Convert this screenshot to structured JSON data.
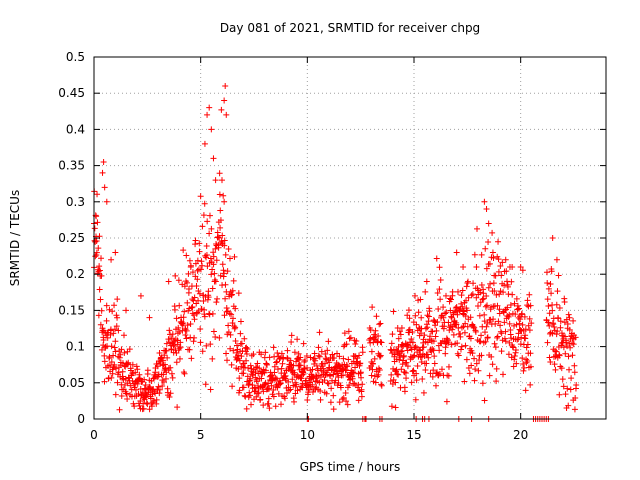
{
  "chart_data": {
    "type": "scatter",
    "title": "Day 081 of 2021, SRMTID for receiver chpg",
    "xlabel": "GPS time / hours",
    "ylabel": "SRMTID / TECUs",
    "xlim": [
      0,
      24
    ],
    "ylim": [
      0,
      0.5
    ],
    "grid": true,
    "marker": "plus",
    "color": "#ff0000",
    "x_ticks": [
      0,
      5,
      10,
      15,
      20
    ],
    "x_tick_labels": [
      "0",
      "5",
      "10",
      "15",
      "20"
    ],
    "y_ticks": [
      0,
      0.05,
      0.1,
      0.15,
      0.2,
      0.25,
      0.3,
      0.35,
      0.4,
      0.45,
      0.5
    ],
    "y_tick_labels": [
      "0",
      "0.05",
      "0.1",
      "0.15",
      "0.2",
      "0.25",
      "0.3",
      "0.35",
      "0.4",
      "0.45",
      "0.5"
    ],
    "series": [
      {
        "name": "SRMTID",
        "trend": [
          [
            0.0,
            0.24
          ],
          [
            0.1,
            0.26
          ],
          [
            0.3,
            0.17
          ],
          [
            0.5,
            0.1
          ],
          [
            0.8,
            0.09
          ],
          [
            1.0,
            0.1
          ],
          [
            1.3,
            0.06
          ],
          [
            1.7,
            0.06
          ],
          [
            2.0,
            0.05
          ],
          [
            2.3,
            0.035
          ],
          [
            2.7,
            0.04
          ],
          [
            3.0,
            0.06
          ],
          [
            3.5,
            0.08
          ],
          [
            4.0,
            0.12
          ],
          [
            4.5,
            0.15
          ],
          [
            5.0,
            0.17
          ],
          [
            5.5,
            0.19
          ],
          [
            5.8,
            0.22
          ],
          [
            6.0,
            0.25
          ],
          [
            6.3,
            0.15
          ],
          [
            6.6,
            0.1
          ],
          [
            7.0,
            0.06
          ],
          [
            7.5,
            0.045
          ],
          [
            8.0,
            0.05
          ],
          [
            9.0,
            0.065
          ],
          [
            10.0,
            0.06
          ],
          [
            11.0,
            0.065
          ],
          [
            12.0,
            0.07
          ],
          [
            12.6,
            0.065
          ],
          [
            13.0,
            0.09
          ],
          [
            14.0,
            0.085
          ],
          [
            15.0,
            0.1
          ],
          [
            16.0,
            0.11
          ],
          [
            17.0,
            0.13
          ],
          [
            18.0,
            0.14
          ],
          [
            19.0,
            0.16
          ],
          [
            20.0,
            0.13
          ],
          [
            20.5,
            0.12
          ],
          [
            21.5,
            0.13
          ],
          [
            22.0,
            0.1
          ],
          [
            22.6,
            0.08
          ]
        ],
        "spread": [
          [
            0.0,
            0.03
          ],
          [
            1.0,
            0.03
          ],
          [
            2.0,
            0.015
          ],
          [
            3.0,
            0.02
          ],
          [
            4.0,
            0.04
          ],
          [
            5.0,
            0.05
          ],
          [
            6.0,
            0.06
          ],
          [
            7.0,
            0.025
          ],
          [
            8.0,
            0.02
          ],
          [
            12.0,
            0.02
          ],
          [
            13.0,
            0.025
          ],
          [
            15.0,
            0.03
          ],
          [
            17.0,
            0.035
          ],
          [
            18.0,
            0.05
          ],
          [
            20.0,
            0.04
          ],
          [
            22.0,
            0.04
          ]
        ],
        "gaps": [
          [
            12.6,
            12.9
          ],
          [
            13.5,
            13.9
          ],
          [
            20.5,
            21.2
          ]
        ],
        "outliers": [
          [
            0.0,
            0.27
          ],
          [
            0.1,
            0.28
          ],
          [
            0.4,
            0.34
          ],
          [
            0.45,
            0.355
          ],
          [
            0.5,
            0.32
          ],
          [
            0.6,
            0.3
          ],
          [
            0.8,
            0.22
          ],
          [
            1.0,
            0.23
          ],
          [
            1.5,
            0.15
          ],
          [
            2.2,
            0.17
          ],
          [
            2.6,
            0.14
          ],
          [
            3.5,
            0.19
          ],
          [
            5.2,
            0.38
          ],
          [
            5.3,
            0.42
          ],
          [
            5.4,
            0.43
          ],
          [
            5.5,
            0.4
          ],
          [
            5.6,
            0.36
          ],
          [
            5.7,
            0.33
          ],
          [
            5.9,
            0.31
          ],
          [
            6.0,
            0.33
          ],
          [
            6.1,
            0.3
          ],
          [
            6.1,
            0.44
          ],
          [
            6.15,
            0.46
          ],
          [
            6.2,
            0.42
          ],
          [
            15.3,
            0.165
          ],
          [
            15.6,
            0.19
          ],
          [
            16.5,
            0.17
          ],
          [
            17.0,
            0.23
          ],
          [
            17.3,
            0.21
          ],
          [
            18.3,
            0.3
          ],
          [
            18.4,
            0.29
          ],
          [
            18.5,
            0.27
          ],
          [
            18.7,
            0.23
          ],
          [
            19.3,
            0.22
          ],
          [
            19.6,
            0.21
          ],
          [
            20.0,
            0.21
          ],
          [
            21.5,
            0.25
          ],
          [
            21.7,
            0.22
          ]
        ],
        "zero_points": [
          10.0,
          10.05,
          12.6,
          12.7,
          12.75,
          13.4,
          13.5,
          15.1,
          15.4,
          15.5,
          15.7,
          17.1,
          17.7,
          18.5,
          20.6,
          20.7,
          20.8,
          20.9,
          21.0,
          21.1,
          21.2,
          21.3
        ]
      }
    ]
  }
}
